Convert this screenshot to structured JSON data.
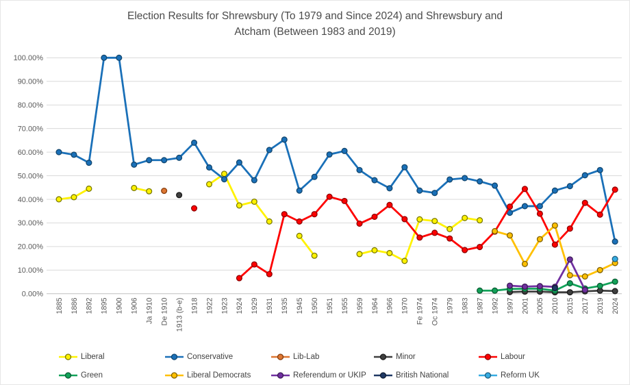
{
  "title_line1": "Election Results for Shrewsbury (To 1979 and Since 2024) and Shrewsbury and",
  "title_line2": "Atcham (Between 1983 and 2019)",
  "chart_data": {
    "type": "line",
    "title": "Election Results for Shrewsbury (To 1979 and Since 2024) and Shrewsbury and Atcham (Between 1983 and 2019)",
    "ylim": [
      0,
      100
    ],
    "ytick_step": 10,
    "ytick_labels": [
      "0.00%",
      "10.00%",
      "20.00%",
      "30.00%",
      "40.00%",
      "50.00%",
      "60.00%",
      "70.00%",
      "80.00%",
      "90.00%",
      "100.00%"
    ],
    "grid": true,
    "legend_position": "bottom",
    "x": [
      "1885",
      "1886",
      "1892",
      "1895",
      "1900",
      "1906",
      "Ja 1910",
      "De 1910",
      "1913 (b-e)",
      "1918",
      "1922",
      "1923",
      "1924",
      "1929",
      "1931",
      "1935",
      "1945",
      "1950",
      "1951",
      "1955",
      "1959",
      "1964",
      "1966",
      "1970",
      "Fe 1974",
      "Oc 1974",
      "1979",
      "1983",
      "1987",
      "1992",
      "1997",
      "2001",
      "2005",
      "2010",
      "2015",
      "2017",
      "2019",
      "2024"
    ],
    "series": [
      {
        "name": "Liberal",
        "color": "#FFF200",
        "border": "#7a7a00",
        "values": [
          40.0,
          40.9,
          44.5,
          null,
          null,
          44.8,
          43.4,
          null,
          null,
          null,
          46.4,
          50.8,
          37.4,
          39.0,
          30.6,
          null,
          24.5,
          16.1,
          null,
          null,
          16.8,
          18.4,
          17.2,
          13.9,
          31.5,
          30.8,
          27.4,
          32.1,
          31.1,
          null,
          null,
          null,
          null,
          null,
          null,
          null,
          null,
          null
        ]
      },
      {
        "name": "Conservative",
        "color": "#1a70b8",
        "border": "#12466e",
        "values": [
          60.0,
          58.9,
          55.5,
          100.0,
          100.0,
          54.7,
          56.6,
          56.6,
          57.6,
          64.0,
          53.5,
          48.5,
          55.6,
          48.1,
          60.9,
          65.3,
          43.7,
          49.5,
          59.0,
          60.5,
          52.4,
          48.1,
          44.7,
          53.6,
          43.7,
          42.7,
          48.4,
          49.0,
          47.6,
          45.8,
          34.3,
          37.1,
          37.1,
          43.7,
          45.6,
          50.2,
          52.4,
          22.1
        ]
      },
      {
        "name": "Lib-Lab",
        "color": "#dd7733",
        "border": "#843c0c",
        "values": [
          null,
          null,
          null,
          null,
          null,
          null,
          null,
          43.6,
          null,
          null,
          null,
          null,
          null,
          null,
          null,
          null,
          null,
          null,
          null,
          null,
          null,
          null,
          null,
          null,
          null,
          null,
          null,
          null,
          null,
          null,
          null,
          null,
          null,
          null,
          null,
          null,
          null,
          null
        ]
      },
      {
        "name": "Minor",
        "color": "#3f3f3f",
        "border": "#1a1a1a",
        "values": [
          null,
          null,
          null,
          null,
          null,
          null,
          null,
          null,
          41.8,
          null,
          null,
          null,
          null,
          null,
          null,
          null,
          null,
          null,
          null,
          null,
          null,
          null,
          null,
          null,
          null,
          null,
          null,
          null,
          null,
          null,
          0.7,
          0.9,
          0.9,
          0.6,
          0.6,
          1.0,
          1.3,
          1.1
        ]
      },
      {
        "name": "Labour",
        "color": "#fe0000",
        "border": "#8e0000",
        "values": [
          null,
          null,
          null,
          null,
          null,
          null,
          null,
          null,
          null,
          36.2,
          null,
          null,
          6.6,
          12.4,
          8.3,
          33.7,
          30.6,
          33.7,
          41.1,
          39.3,
          29.7,
          32.6,
          37.6,
          31.6,
          23.8,
          25.8,
          23.4,
          18.5,
          19.8,
          26.3,
          36.9,
          44.4,
          33.9,
          20.8,
          27.6,
          38.5,
          33.5,
          44.1
        ]
      },
      {
        "name": "Green",
        "color": "#12a259",
        "border": "#0a5c33",
        "values": [
          null,
          null,
          null,
          null,
          null,
          null,
          null,
          null,
          null,
          null,
          null,
          null,
          null,
          null,
          null,
          null,
          null,
          null,
          null,
          null,
          null,
          null,
          null,
          null,
          null,
          null,
          null,
          null,
          1.3,
          1.3,
          2.0,
          2.1,
          2.1,
          1.3,
          4.4,
          2.2,
          3.3,
          5.1
        ]
      },
      {
        "name": "Liberal Democrats",
        "color": "#ffc000",
        "border": "#7f6000",
        "values": [
          null,
          null,
          null,
          null,
          null,
          null,
          null,
          null,
          null,
          null,
          null,
          null,
          null,
          null,
          null,
          null,
          null,
          null,
          null,
          null,
          null,
          null,
          null,
          null,
          null,
          null,
          null,
          null,
          null,
          26.5,
          24.7,
          12.6,
          23.1,
          28.9,
          7.8,
          7.3,
          10.0,
          13.0
        ]
      },
      {
        "name": "Referendum or UKIP",
        "color": "#7030a0",
        "border": "#3b1a55",
        "values": [
          null,
          null,
          null,
          null,
          null,
          null,
          null,
          null,
          null,
          null,
          null,
          null,
          null,
          null,
          null,
          null,
          null,
          null,
          null,
          null,
          null,
          null,
          null,
          null,
          null,
          null,
          null,
          null,
          null,
          null,
          3.4,
          3.0,
          3.2,
          2.9,
          14.5,
          1.6,
          null,
          null
        ]
      },
      {
        "name": "British National",
        "color": "#1f3864",
        "border": "#101d33",
        "values": [
          null,
          null,
          null,
          null,
          null,
          null,
          null,
          null,
          null,
          null,
          null,
          null,
          null,
          null,
          null,
          null,
          null,
          null,
          null,
          null,
          null,
          null,
          null,
          null,
          null,
          null,
          null,
          null,
          null,
          null,
          null,
          null,
          null,
          2.4,
          null,
          null,
          null,
          null
        ]
      },
      {
        "name": "Reform UK",
        "color": "#36ace2",
        "border": "#1f5e7e",
        "values": [
          null,
          null,
          null,
          null,
          null,
          null,
          null,
          null,
          null,
          null,
          null,
          null,
          null,
          null,
          null,
          null,
          null,
          null,
          null,
          null,
          null,
          null,
          null,
          null,
          null,
          null,
          null,
          null,
          null,
          null,
          null,
          null,
          null,
          null,
          null,
          null,
          null,
          14.7
        ]
      }
    ]
  }
}
